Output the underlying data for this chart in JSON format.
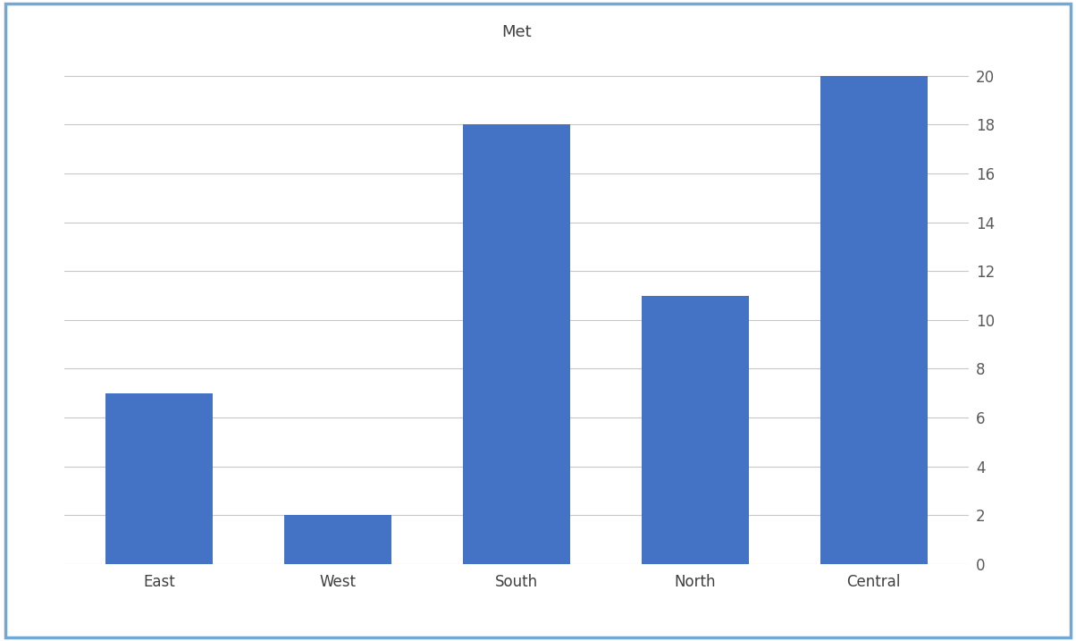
{
  "categories": [
    "East",
    "West",
    "South",
    "North",
    "Central"
  ],
  "values": [
    7,
    2,
    18,
    11,
    20
  ],
  "bar_color": "#4472C4",
  "title": "Met",
  "title_fontsize": 13,
  "ylim": [
    0,
    21
  ],
  "yticks": [
    0,
    2,
    4,
    6,
    8,
    10,
    12,
    14,
    16,
    18,
    20
  ],
  "grid_color": "#C8C8C8",
  "background_color": "#FFFFFF",
  "border_color": "#70A9D6",
  "tick_label_fontsize": 12,
  "bar_width": 0.6,
  "xlabel_color": "#404040",
  "ylabel_color": "#595959"
}
